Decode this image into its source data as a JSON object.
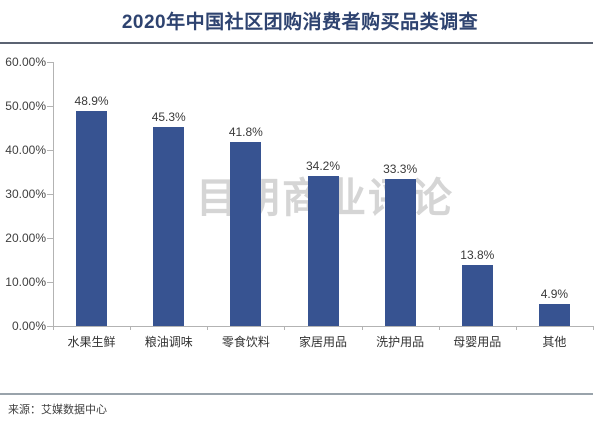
{
  "title": "2020年中国社区团购消费者购买品类调查",
  "watermark_text": "目朝商业评论",
  "source_note": "来源：艾媒数据中心",
  "colors": {
    "bar": "#375391",
    "title_text": "#2e4370",
    "rule_top": "#5b6372",
    "rule_bottom": "#99a3ab",
    "axis_line": "#b3b3b3",
    "axis_text": "#404040",
    "value_label_text": "#3a3a3a",
    "category_text": "#333333",
    "source_text": "#3f3f3f",
    "watermark_text": "#cbcbcb",
    "background": "#ffffff"
  },
  "chart_data": {
    "type": "bar",
    "title": "2020年中国社区团购消费者购买品类调查",
    "categories": [
      "水果生鲜",
      "粮油调味",
      "零食饮料",
      "家居用品",
      "洗护用品",
      "母婴用品",
      "其他"
    ],
    "values": [
      48.9,
      45.3,
      41.8,
      34.2,
      33.3,
      13.8,
      4.9
    ],
    "value_labels": [
      "48.9%",
      "45.3%",
      "41.8%",
      "34.2%",
      "33.3%",
      "13.8%",
      "4.9%"
    ],
    "y_tick_labels": [
      "0.00%",
      "10.00%",
      "20.00%",
      "30.00%",
      "40.00%",
      "50.00%",
      "60.00%"
    ],
    "y_tick_values": [
      0,
      10,
      20,
      30,
      40,
      50,
      60
    ],
    "ylim": [
      0,
      60
    ],
    "xlabel": "",
    "ylabel": "",
    "grid": false,
    "legend": null,
    "source": "来源：艾媒数据中心"
  }
}
